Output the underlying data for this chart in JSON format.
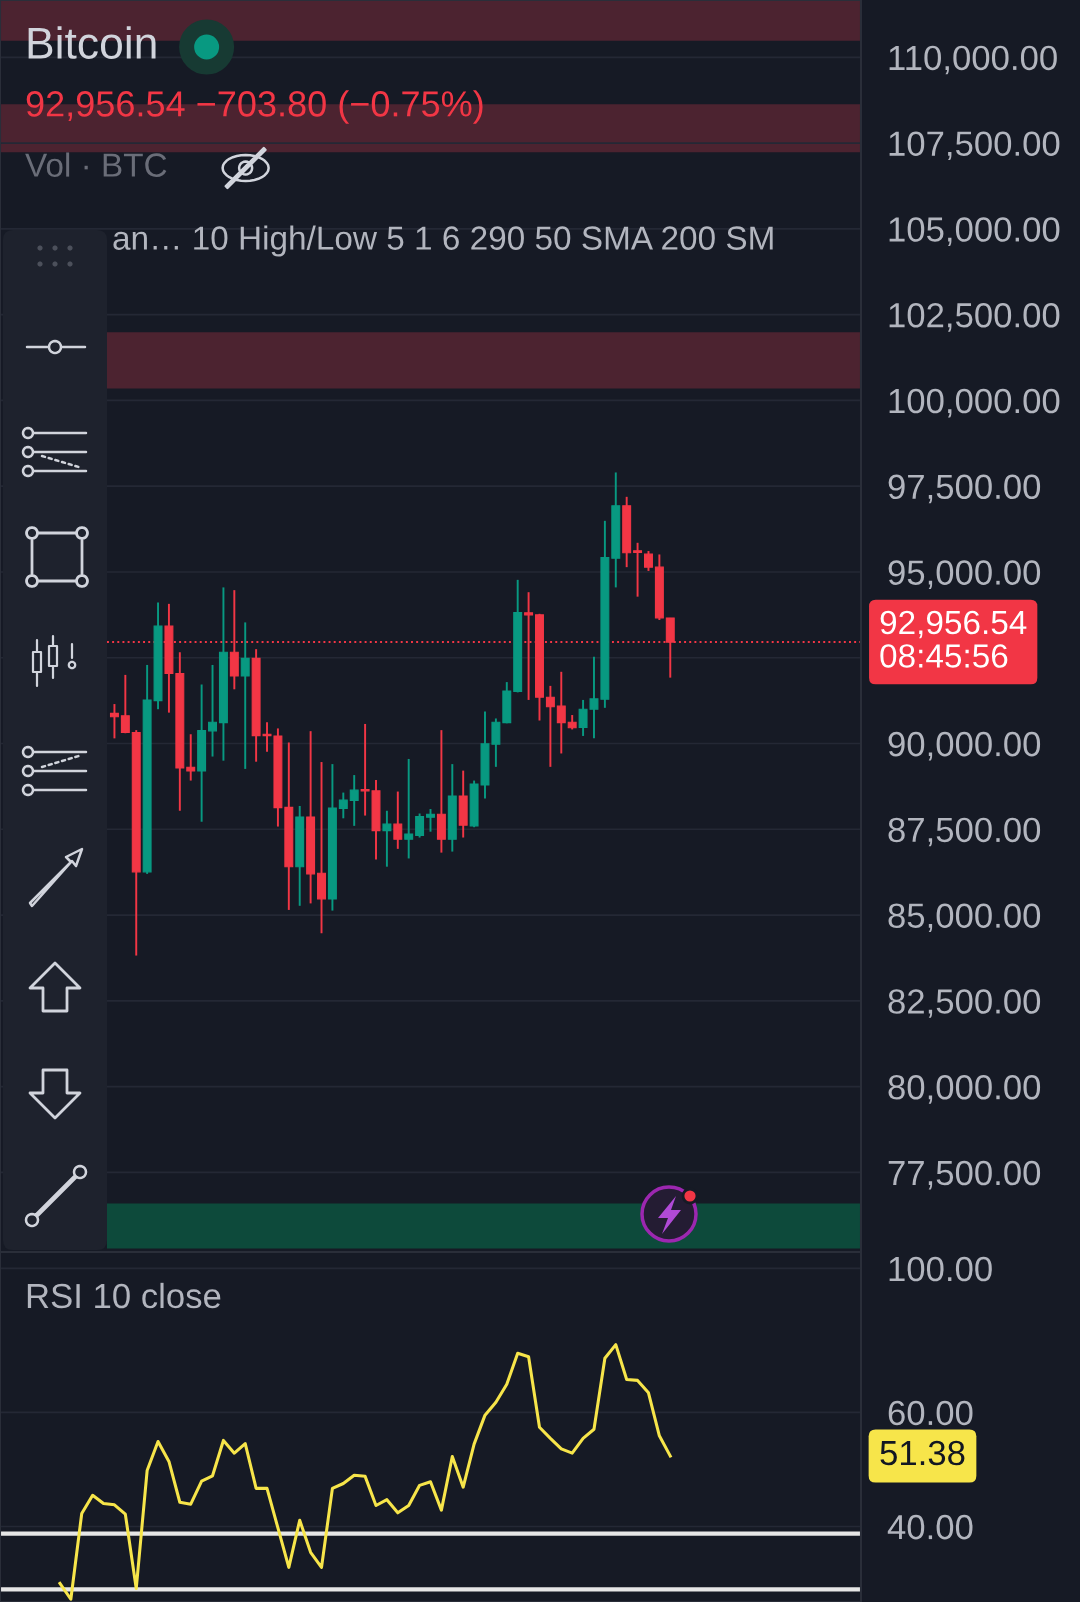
{
  "chart_data": [
    {
      "type": "candlestick",
      "title": "Bitcoin",
      "subtitle": "92,956.54 −703.80 (−0.75%)",
      "annotations": [
        "Vol · BTC",
        "an… 10 High/Low 5 1 6 290 50 SMA 200 SM"
      ],
      "categories": [
        null,
        null,
        null,
        null,
        null,
        null,
        null,
        null,
        null,
        null,
        null,
        null,
        null,
        null,
        null,
        null,
        null,
        null,
        null,
        null,
        null,
        null,
        null,
        null,
        null,
        null,
        null,
        null,
        null,
        null,
        null,
        null,
        null,
        null,
        null,
        null,
        null,
        null,
        null,
        null,
        null,
        null,
        null,
        null,
        null,
        null,
        null,
        null,
        null,
        null,
        null,
        null,
        null,
        null,
        null,
        null,
        null,
        null,
        null,
        null,
        null,
        null,
        null,
        null,
        null,
        null,
        null,
        null,
        null,
        null,
        null,
        null,
        null,
        null,
        null,
        null,
        null,
        null,
        null
      ],
      "ohlc": [
        null,
        null,
        null,
        null,
        null,
        null,
        null,
        null,
        null,
        null,
        [
          90880,
          91150,
          90150,
          90780
        ],
        [
          90810,
          92000,
          90300,
          90320
        ],
        [
          90320,
          90390,
          83820,
          86260
        ],
        [
          86260,
          92290,
          86200,
          91270
        ],
        [
          91250,
          94110,
          91000,
          93420
        ],
        [
          93420,
          94070,
          90900,
          92040
        ],
        [
          92040,
          92660,
          88040,
          89290
        ],
        [
          89310,
          90270,
          88920,
          89200
        ],
        [
          89200,
          91720,
          87720,
          90380
        ],
        [
          90370,
          92290,
          89620,
          90620
        ],
        [
          90610,
          94550,
          89500,
          92660
        ],
        [
          92660,
          94470,
          91580,
          91970
        ],
        [
          91970,
          93530,
          89260,
          92480
        ],
        [
          92480,
          92750,
          89470,
          90230
        ],
        [
          90270,
          90620,
          89760,
          90230
        ],
        [
          90220,
          90440,
          87580,
          88130
        ],
        [
          88140,
          90030,
          85150,
          86410
        ],
        [
          86410,
          88180,
          85270,
          87860
        ],
        [
          87860,
          90360,
          85340,
          86200
        ],
        [
          86220,
          89460,
          84470,
          85470
        ],
        [
          85470,
          89400,
          85130,
          88120
        ],
        [
          88110,
          88570,
          87820,
          88350
        ],
        [
          88340,
          89080,
          87600,
          88640
        ],
        [
          88660,
          90570,
          87900,
          88620
        ],
        [
          88620,
          88940,
          86620,
          87460
        ],
        [
          87460,
          88040,
          86410,
          87650
        ],
        [
          87650,
          88600,
          86930,
          87210
        ],
        [
          87210,
          89550,
          86650,
          87360
        ],
        [
          87320,
          87960,
          87260,
          87870
        ],
        [
          87850,
          88090,
          87430,
          87940
        ],
        [
          87940,
          90390,
          86820,
          87210
        ],
        [
          87210,
          89400,
          86850,
          88470
        ],
        [
          88470,
          89210,
          87260,
          87620
        ],
        [
          87600,
          88920,
          87560,
          88820
        ],
        [
          88790,
          90930,
          88400,
          89990
        ],
        [
          89980,
          90730,
          89320,
          90620
        ],
        [
          90610,
          91790,
          90590,
          91530
        ],
        [
          91520,
          94770,
          91490,
          93820
        ],
        [
          93810,
          94410,
          91270,
          93750
        ],
        [
          93750,
          93780,
          90670,
          91350
        ],
        [
          91350,
          91680,
          89320,
          91070
        ],
        [
          91090,
          92090,
          89710,
          90610
        ],
        [
          90620,
          90830,
          90410,
          90460
        ],
        [
          90470,
          91270,
          90220,
          91000
        ],
        [
          91000,
          92530,
          90150,
          91300
        ],
        [
          91290,
          96490,
          91040,
          95420
        ],
        [
          95400,
          97900,
          94550,
          96930
        ],
        [
          96930,
          97190,
          95140,
          95560
        ],
        [
          95620,
          95850,
          94280,
          95570
        ],
        [
          95520,
          95610,
          95030,
          95140
        ],
        [
          95140,
          95510,
          93600,
          93660
        ],
        [
          93660,
          93660,
          91920,
          92956.54
        ],
        null,
        null,
        null,
        null,
        null,
        null,
        null,
        null,
        null,
        null,
        null,
        null,
        null,
        null,
        null,
        null,
        null
      ],
      "colors": [
        null,
        null,
        null,
        null,
        null,
        null,
        null,
        null,
        null,
        null,
        "#f23645",
        "#f23645",
        "#f23645",
        "#089981",
        "#089981",
        "#f23645",
        "#f23645",
        "#f23645",
        "#089981",
        "#089981",
        "#089981",
        "#f23645",
        "#089981",
        "#f23645",
        "#f23645",
        "#f23645",
        "#f23645",
        "#089981",
        "#f23645",
        "#f23645",
        "#089981",
        "#089981",
        "#089981",
        "#f23645",
        "#f23645",
        "#089981",
        "#f23645",
        "#089981",
        "#089981",
        "#089981",
        "#f23645",
        "#089981",
        "#f23645",
        "#089981",
        "#089981",
        "#089981",
        "#089981",
        "#089981",
        "#f23645",
        "#f23645",
        "#f23645",
        "#f23645",
        "#f23645",
        "#089981",
        "#089981",
        "#089981",
        "#089981",
        "#f23645",
        "#f23645",
        "#f23645",
        "#f23645",
        "#f23645",
        null,
        null,
        null,
        null,
        null,
        null,
        null,
        null,
        null,
        null,
        null,
        null,
        null,
        null,
        null,
        null,
        null
      ],
      "ylim": [
        75180,
        111670
      ],
      "yticks": [
        {
          "value": 77500,
          "label": "77,500.00"
        },
        {
          "value": 80000,
          "label": "80,000.00"
        },
        {
          "value": 82500,
          "label": "82,500.00"
        },
        {
          "value": 85000,
          "label": "85,000.00"
        },
        {
          "value": 87500,
          "label": "87,500.00"
        },
        {
          "value": 90000,
          "label": "90,000.00"
        },
        {
          "value": 92500,
          "label": null
        },
        {
          "value": 95000,
          "label": "95,000.00"
        },
        {
          "value": 97500,
          "label": "97,500.00"
        },
        {
          "value": 100000,
          "label": "100,000.00"
        },
        {
          "value": 102500,
          "label": "102,500.00"
        },
        {
          "value": 105000,
          "label": "105,000.00"
        },
        {
          "value": 107500,
          "label": "107,500.00"
        },
        {
          "value": 110000,
          "label": "110,000.00"
        }
      ],
      "grid": "y",
      "tick_labels": "y",
      "bands": [
        {
          "axis": "y",
          "from": 110480,
          "to": 111670,
          "color": "#4c2330"
        },
        {
          "axis": "y",
          "from": 107230,
          "to": 108630,
          "color": "#4c2330"
        },
        {
          "axis": "y",
          "from": 100350,
          "to": 101990,
          "color": "#4c2330"
        },
        {
          "axis": "y",
          "from": 75280,
          "to": 76590,
          "color": "#0d4a3b"
        }
      ],
      "ref_lines": [
        {
          "axis": "y",
          "value": 92956.54,
          "label": "92,956.54\n08:45:56",
          "color": "#f23645",
          "line_style": "dotted"
        }
      ]
    },
    {
      "type": "line",
      "title": "RSI 10 close",
      "annotations": [
        "51.38"
      ],
      "categories": [
        null,
        null,
        null,
        null,
        null,
        null,
        null,
        null,
        null,
        null,
        null,
        null,
        null,
        null,
        null,
        null,
        null,
        null,
        null,
        null,
        null,
        null,
        null,
        null,
        null,
        null,
        null,
        null,
        null,
        null,
        null,
        null,
        null,
        null,
        null,
        null,
        null,
        null,
        null,
        null,
        null,
        null,
        null,
        null,
        null,
        null,
        null,
        null,
        null,
        null,
        null,
        null,
        null,
        null,
        null,
        null,
        null,
        null,
        null,
        null,
        null,
        null,
        null,
        null,
        null,
        null,
        null,
        null,
        null,
        null,
        null,
        null,
        null,
        null,
        null,
        null,
        null,
        null,
        null
      ],
      "series": [
        {
          "color": "#f7e54a",
          "values": [
            null,
            null,
            null,
            null,
            null,
            32.7,
            30.9,
            41.9,
            44.7,
            43.4,
            43.2,
            41.8,
            32.1,
            48.8,
            54.1,
            50.4,
            43.6,
            43.3,
            47.0,
            47.9,
            54.3,
            51.9,
            53.7,
            45.8,
            45.8,
            39.8,
            34.6,
            40.9,
            36.5,
            34.6,
            45.8,
            46.6,
            48.0,
            47.8,
            43.1,
            44.0,
            42.0,
            43.1,
            46.3,
            46.9,
            42.4,
            51.3,
            46.0,
            53.6,
            59.4,
            62.2,
            66.3,
            74.0,
            73.1,
            56.9,
            54.7,
            52.7,
            51.9,
            54.7,
            56.5,
            72.7,
            76.3,
            67.4,
            67.2,
            64.3,
            55.2,
            51.38,
            null,
            null,
            null,
            null,
            null,
            null,
            null,
            null,
            null,
            null,
            null,
            null,
            null,
            null,
            null,
            null,
            null
          ]
        }
      ],
      "log": "y",
      "ylim": [
        30.6,
        106
      ],
      "yticks": [
        {
          "value": 100,
          "label": "100.00"
        },
        {
          "value": 60,
          "label": "60.00"
        },
        {
          "value": 40,
          "label": "40.00"
        }
      ],
      "grid": "y",
      "tick_labels": "y",
      "ref_lines": [
        {
          "axis": "y",
          "value": 39,
          "color": "#e6e6e6"
        },
        {
          "axis": "y",
          "value": 32,
          "color": "#e6e6e6"
        }
      ]
    }
  ]
}
